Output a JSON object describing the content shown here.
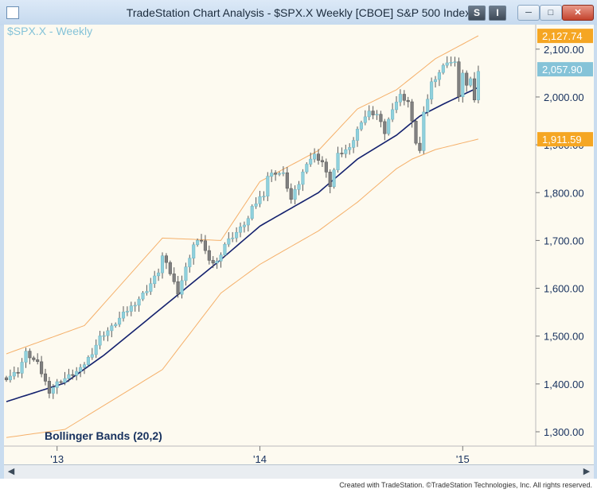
{
  "window": {
    "title": "TradeStation Chart Analysis - $SPX.X Weekly [CBOE] S&P 500 Index",
    "buttons": {
      "s": "S",
      "i": "I"
    }
  },
  "footer": {
    "credit": "Created with TradeStation. ©TradeStation Technologies, Inc. All rights reserved."
  },
  "colors": {
    "background": "#fdfaf0",
    "up_candle": "#8fd0dc",
    "down_candle": "#808080",
    "bollinger_band": "#f5b06a",
    "moving_average": "#14216e",
    "axis_text": "#17315e",
    "label_upper": "#f5a623",
    "label_last": "#85c3d8",
    "label_lower": "#f5a623"
  },
  "chart_data": {
    "type": "candlestick",
    "symbol_label": "$SPX.X - Weekly",
    "study_label": "Bollinger Bands (20,2)",
    "ylim": [
      1270,
      2165
    ],
    "yticks": [
      1300,
      1400,
      1500,
      1600,
      1700,
      1800,
      1900,
      2000,
      2100
    ],
    "ytick_labels": [
      "1,300.00",
      "1,400.00",
      "1,500.00",
      "1,600.00",
      "1,700.00",
      "1,800.00",
      "1,900.00",
      "2,000.00",
      "2,100.00"
    ],
    "x_bar_count": 132,
    "xticks": [
      {
        "bar": 13,
        "label": "'13"
      },
      {
        "bar": 65,
        "label": "'14"
      },
      {
        "bar": 117,
        "label": "'15"
      }
    ],
    "price_labels": [
      {
        "value": 2127.74,
        "text": "2,127.74",
        "kind": "upper"
      },
      {
        "value": 2057.9,
        "text": "2,057.90",
        "kind": "last"
      },
      {
        "value": 1911.59,
        "text": "1,911.59",
        "kind": "lower"
      }
    ],
    "close_anchors": [
      [
        0,
        1413
      ],
      [
        3,
        1426
      ],
      [
        5,
        1465
      ],
      [
        8,
        1442
      ],
      [
        11,
        1385
      ],
      [
        13,
        1402
      ],
      [
        16,
        1416
      ],
      [
        19,
        1430
      ],
      [
        22,
        1466
      ],
      [
        24,
        1498
      ],
      [
        27,
        1518
      ],
      [
        30,
        1546
      ],
      [
        33,
        1569
      ],
      [
        36,
        1597
      ],
      [
        39,
        1635
      ],
      [
        40,
        1667
      ],
      [
        42,
        1632
      ],
      [
        44,
        1592
      ],
      [
        46,
        1642
      ],
      [
        48,
        1691
      ],
      [
        50,
        1702
      ],
      [
        52,
        1654
      ],
      [
        54,
        1655
      ],
      [
        56,
        1693
      ],
      [
        58,
        1709
      ],
      [
        60,
        1725
      ],
      [
        62,
        1745
      ],
      [
        63,
        1767
      ],
      [
        65,
        1790
      ],
      [
        66,
        1797
      ],
      [
        67,
        1835
      ],
      [
        69,
        1842
      ],
      [
        71,
        1838
      ],
      [
        73,
        1785
      ],
      [
        75,
        1819
      ],
      [
        77,
        1864
      ],
      [
        79,
        1878
      ],
      [
        81,
        1864
      ],
      [
        83,
        1815
      ],
      [
        85,
        1878
      ],
      [
        87,
        1888
      ],
      [
        89,
        1910
      ],
      [
        91,
        1950
      ],
      [
        93,
        1967
      ],
      [
        95,
        1963
      ],
      [
        97,
        1925
      ],
      [
        99,
        1978
      ],
      [
        101,
        2003
      ],
      [
        103,
        1990
      ],
      [
        104,
        1946
      ],
      [
        105,
        1906
      ],
      [
        106,
        1887
      ],
      [
        107,
        1964
      ],
      [
        109,
        2030
      ],
      [
        111,
        2052
      ],
      [
        113,
        2075
      ],
      [
        115,
        2070
      ],
      [
        116,
        2003
      ],
      [
        117,
        2049
      ],
      [
        118,
        2020
      ],
      [
        119,
        2040
      ],
      [
        120,
        1992
      ],
      [
        121,
        2058
      ]
    ],
    "series": [
      {
        "name": "Bollinger upper band",
        "values_note": "",
        "anchors": [
          [
            0,
            1463
          ],
          [
            20,
            1522
          ],
          [
            40,
            1705
          ],
          [
            55,
            1700
          ],
          [
            65,
            1823
          ],
          [
            80,
            1888
          ],
          [
            90,
            1975
          ],
          [
            100,
            2015
          ],
          [
            110,
            2080
          ],
          [
            121,
            2128
          ]
        ]
      },
      {
        "name": "20-week moving average",
        "anchors": [
          [
            0,
            1363
          ],
          [
            15,
            1402
          ],
          [
            25,
            1460
          ],
          [
            40,
            1560
          ],
          [
            55,
            1660
          ],
          [
            65,
            1730
          ],
          [
            80,
            1800
          ],
          [
            90,
            1870
          ],
          [
            100,
            1920
          ],
          [
            106,
            1960
          ],
          [
            112,
            1985
          ],
          [
            121,
            2020
          ]
        ]
      },
      {
        "name": "Bollinger lower band",
        "anchors": [
          [
            0,
            1288
          ],
          [
            15,
            1305
          ],
          [
            25,
            1355
          ],
          [
            40,
            1430
          ],
          [
            55,
            1590
          ],
          [
            65,
            1650
          ],
          [
            80,
            1720
          ],
          [
            90,
            1780
          ],
          [
            100,
            1850
          ],
          [
            104,
            1870
          ],
          [
            110,
            1890
          ],
          [
            121,
            1912
          ]
        ]
      }
    ]
  }
}
